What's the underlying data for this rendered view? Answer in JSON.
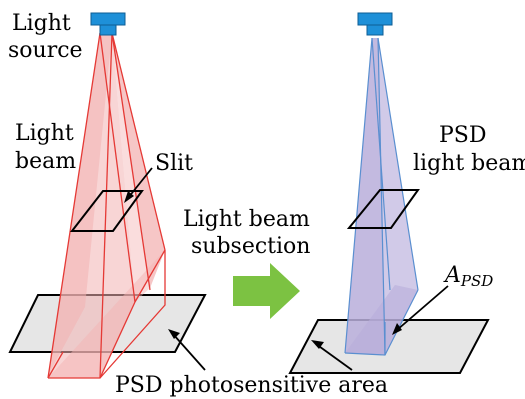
{
  "labels": {
    "light_source_line1": "Light",
    "light_source_line2": "source",
    "light_beam_line1": "Light",
    "light_beam_line2": "beam",
    "slit": "Slit",
    "subsection_line1": "Light beam",
    "subsection_line2": "subsection",
    "psd_beam_line1": "PSD",
    "psd_beam_line2": "light beam",
    "a_psd_main": "A",
    "a_psd_sub": "PSD",
    "psd_area": "PSD photosensitive area"
  },
  "colors": {
    "source_blue": "#1E90D8",
    "beam_red_stroke": "#E53935",
    "beam_red_fill": "#F3B3B3",
    "beam_purple_fill": "#B8AEDB",
    "beam_purple_stroke": "#5A8FD0",
    "arrow_green": "#7CC242",
    "plate_fill": "#E6E6E6"
  }
}
